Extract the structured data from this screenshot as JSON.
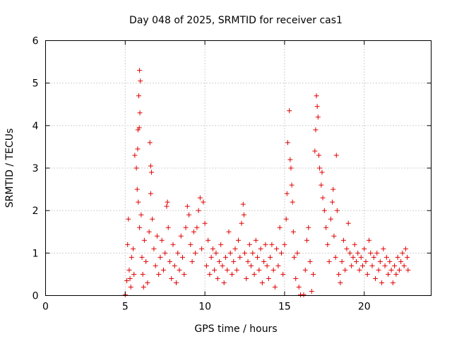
{
  "chart_data": {
    "type": "scatter",
    "title": "Day 048 of 2025, SRMTID for receiver cas1",
    "xlabel": "GPS time / hours",
    "ylabel": "SRMTID / TECUs",
    "xlim": [
      0,
      24.2
    ],
    "ylim": [
      0,
      6
    ],
    "xticks": [
      0,
      5,
      10,
      15,
      20
    ],
    "yticks": [
      0,
      1,
      2,
      3,
      4,
      5,
      6
    ],
    "grid": true,
    "marker": "+",
    "color": "#e00000",
    "series": [
      {
        "name": "SRMTID",
        "points": [
          [
            5.0,
            0.02
          ],
          [
            5.1,
            0.35
          ],
          [
            5.15,
            1.2
          ],
          [
            5.2,
            1.8
          ],
          [
            5.25,
            0.6
          ],
          [
            5.3,
            0.4
          ],
          [
            5.35,
            0.2
          ],
          [
            5.4,
            0.9
          ],
          [
            5.5,
            1.1
          ],
          [
            5.55,
            0.5
          ],
          [
            5.6,
            3.3
          ],
          [
            5.7,
            3.0
          ],
          [
            5.75,
            2.5
          ],
          [
            5.8,
            3.9
          ],
          [
            5.85,
            4.7
          ],
          [
            5.9,
            5.3
          ],
          [
            5.95,
            5.05
          ],
          [
            5.92,
            4.3
          ],
          [
            5.88,
            3.95
          ],
          [
            5.78,
            3.45
          ],
          [
            5.82,
            2.2
          ],
          [
            5.9,
            1.6
          ],
          [
            6.0,
            1.9
          ],
          [
            6.05,
            0.9
          ],
          [
            6.1,
            0.5
          ],
          [
            6.15,
            0.2
          ],
          [
            6.2,
            1.3
          ],
          [
            6.3,
            0.8
          ],
          [
            6.4,
            0.3
          ],
          [
            6.5,
            1.5
          ],
          [
            6.55,
            3.6
          ],
          [
            6.6,
            3.05
          ],
          [
            6.65,
            2.9
          ],
          [
            6.6,
            2.4
          ],
          [
            6.7,
            1.8
          ],
          [
            6.8,
            1.1
          ],
          [
            6.9,
            0.7
          ],
          [
            7.0,
            1.4
          ],
          [
            7.1,
            0.5
          ],
          [
            7.2,
            0.9
          ],
          [
            7.3,
            1.3
          ],
          [
            7.4,
            0.6
          ],
          [
            7.5,
            1.0
          ],
          [
            7.6,
            2.1
          ],
          [
            7.65,
            2.2
          ],
          [
            7.7,
            1.6
          ],
          [
            7.8,
            0.8
          ],
          [
            7.9,
            0.4
          ],
          [
            8.0,
            1.2
          ],
          [
            8.1,
            0.7
          ],
          [
            8.2,
            0.3
          ],
          [
            8.3,
            1.0
          ],
          [
            8.4,
            0.6
          ],
          [
            8.5,
            1.4
          ],
          [
            8.6,
            0.9
          ],
          [
            8.7,
            0.5
          ],
          [
            8.8,
            1.6
          ],
          [
            8.9,
            2.1
          ],
          [
            9.0,
            1.9
          ],
          [
            9.1,
            1.2
          ],
          [
            9.2,
            0.8
          ],
          [
            9.3,
            1.5
          ],
          [
            9.4,
            1.0
          ],
          [
            9.5,
            1.6
          ],
          [
            9.6,
            2.0
          ],
          [
            9.7,
            2.3
          ],
          [
            9.8,
            1.1
          ],
          [
            9.9,
            2.2
          ],
          [
            10.0,
            1.7
          ],
          [
            10.1,
            0.7
          ],
          [
            10.2,
            1.3
          ],
          [
            10.3,
            0.5
          ],
          [
            10.4,
            0.9
          ],
          [
            10.5,
            1.1
          ],
          [
            10.6,
            0.6
          ],
          [
            10.7,
            1.0
          ],
          [
            10.8,
            0.4
          ],
          [
            10.9,
            0.8
          ],
          [
            11.0,
            1.2
          ],
          [
            11.1,
            0.7
          ],
          [
            11.2,
            0.3
          ],
          [
            11.3,
            0.9
          ],
          [
            11.4,
            0.6
          ],
          [
            11.5,
            1.5
          ],
          [
            11.6,
            1.0
          ],
          [
            11.7,
            0.5
          ],
          [
            11.8,
            0.8
          ],
          [
            11.9,
            1.1
          ],
          [
            12.0,
            0.6
          ],
          [
            12.1,
            1.3
          ],
          [
            12.2,
            0.9
          ],
          [
            12.3,
            1.7
          ],
          [
            12.4,
            2.15
          ],
          [
            12.45,
            1.9
          ],
          [
            12.5,
            1.0
          ],
          [
            12.6,
            0.4
          ],
          [
            12.7,
            0.8
          ],
          [
            12.8,
            1.2
          ],
          [
            12.9,
            0.7
          ],
          [
            13.0,
            1.0
          ],
          [
            13.1,
            0.5
          ],
          [
            13.2,
            1.3
          ],
          [
            13.3,
            0.9
          ],
          [
            13.4,
            0.6
          ],
          [
            13.5,
            1.1
          ],
          [
            13.6,
            0.3
          ],
          [
            13.7,
            0.8
          ],
          [
            13.8,
            1.2
          ],
          [
            13.9,
            0.7
          ],
          [
            14.0,
            0.4
          ],
          [
            14.1,
            0.9
          ],
          [
            14.2,
            1.2
          ],
          [
            14.3,
            0.6
          ],
          [
            14.4,
            0.2
          ],
          [
            14.5,
            1.1
          ],
          [
            14.6,
            0.7
          ],
          [
            14.7,
            1.6
          ],
          [
            14.8,
            1.0
          ],
          [
            14.9,
            0.5
          ],
          [
            15.0,
            1.2
          ],
          [
            15.1,
            1.8
          ],
          [
            15.15,
            2.4
          ],
          [
            15.2,
            3.6
          ],
          [
            15.3,
            4.35
          ],
          [
            15.35,
            3.2
          ],
          [
            15.4,
            3.0
          ],
          [
            15.45,
            2.6
          ],
          [
            15.5,
            2.2
          ],
          [
            15.55,
            1.5
          ],
          [
            15.6,
            0.9
          ],
          [
            15.7,
            0.4
          ],
          [
            15.8,
            1.0
          ],
          [
            15.9,
            0.2
          ],
          [
            16.0,
            0.02
          ],
          [
            16.2,
            0.02
          ],
          [
            16.3,
            0.6
          ],
          [
            16.4,
            1.3
          ],
          [
            16.5,
            1.6
          ],
          [
            16.6,
            0.8
          ],
          [
            16.7,
            0.1
          ],
          [
            16.8,
            0.5
          ],
          [
            16.9,
            3.4
          ],
          [
            16.95,
            3.9
          ],
          [
            17.0,
            4.7
          ],
          [
            17.05,
            4.45
          ],
          [
            17.1,
            4.2
          ],
          [
            17.15,
            3.3
          ],
          [
            17.2,
            3.0
          ],
          [
            17.3,
            2.6
          ],
          [
            17.35,
            2.9
          ],
          [
            17.4,
            2.3
          ],
          [
            17.5,
            2.0
          ],
          [
            17.6,
            1.6
          ],
          [
            17.7,
            1.2
          ],
          [
            17.8,
            0.8
          ],
          [
            17.9,
            1.8
          ],
          [
            18.0,
            2.2
          ],
          [
            18.05,
            2.5
          ],
          [
            18.1,
            1.4
          ],
          [
            18.2,
            0.9
          ],
          [
            18.25,
            3.3
          ],
          [
            18.3,
            2.0
          ],
          [
            18.4,
            0.5
          ],
          [
            18.5,
            0.3
          ],
          [
            18.6,
            0.8
          ],
          [
            18.7,
            1.3
          ],
          [
            18.8,
            0.6
          ],
          [
            18.9,
            1.1
          ],
          [
            19.0,
            1.7
          ],
          [
            19.1,
            1.0
          ],
          [
            19.2,
            0.7
          ],
          [
            19.3,
            0.9
          ],
          [
            19.4,
            1.2
          ],
          [
            19.5,
            0.8
          ],
          [
            19.6,
            1.0
          ],
          [
            19.7,
            0.6
          ],
          [
            19.8,
            0.9
          ],
          [
            19.9,
            0.7
          ],
          [
            20.0,
            1.1
          ],
          [
            20.1,
            0.8
          ],
          [
            20.2,
            0.5
          ],
          [
            20.3,
            1.3
          ],
          [
            20.4,
            1.0
          ],
          [
            20.5,
            0.7
          ],
          [
            20.6,
            0.9
          ],
          [
            20.7,
            0.4
          ],
          [
            20.8,
            1.0
          ],
          [
            20.9,
            0.6
          ],
          [
            21.0,
            0.8
          ],
          [
            21.1,
            0.3
          ],
          [
            21.2,
            1.1
          ],
          [
            21.3,
            0.7
          ],
          [
            21.4,
            0.9
          ],
          [
            21.5,
            0.5
          ],
          [
            21.6,
            0.8
          ],
          [
            21.7,
            0.6
          ],
          [
            21.8,
            0.3
          ],
          [
            21.9,
            0.7
          ],
          [
            22.0,
            0.5
          ],
          [
            22.1,
            0.9
          ],
          [
            22.2,
            0.6
          ],
          [
            22.3,
            0.8
          ],
          [
            22.4,
            1.0
          ],
          [
            22.5,
            0.7
          ],
          [
            22.6,
            1.1
          ],
          [
            22.7,
            0.9
          ],
          [
            22.75,
            0.6
          ]
        ]
      }
    ]
  }
}
